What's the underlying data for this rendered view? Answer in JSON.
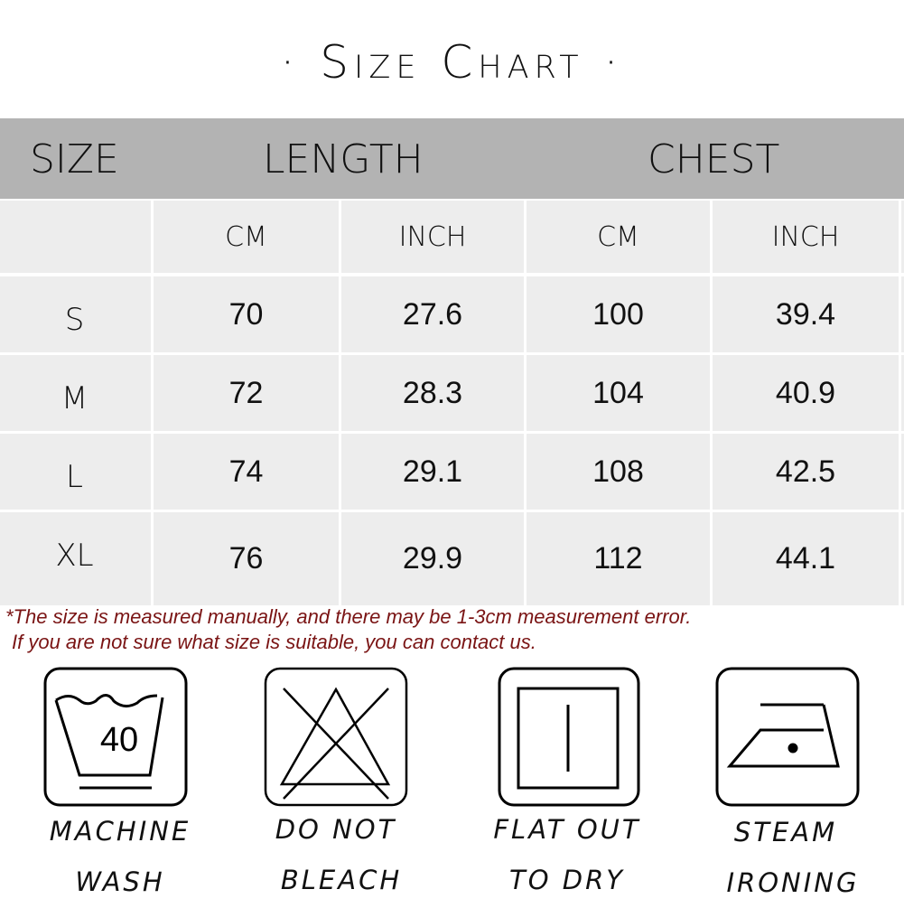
{
  "title": "· Size Chart ·",
  "header": {
    "size": "SIZE",
    "length": "LENGTH",
    "chest": "CHEST"
  },
  "units": [
    "CM",
    "INCH",
    "CM",
    "INCH"
  ],
  "rows": [
    {
      "size": "S",
      "length_cm": "70",
      "length_inch": "27.6",
      "chest_cm": "100",
      "chest_inch": "39.4"
    },
    {
      "size": "M",
      "length_cm": "72",
      "length_inch": "28.3",
      "chest_cm": "104",
      "chest_inch": "40.9"
    },
    {
      "size": "L",
      "length_cm": "74",
      "length_inch": "29.1",
      "chest_cm": "108",
      "chest_inch": "42.5"
    },
    {
      "size": "XL",
      "length_cm": "76",
      "length_inch": "29.9",
      "chest_cm": "112",
      "chest_inch": "44.1"
    }
  ],
  "notes": [
    "*The size is measured manually, and there may be 1-3cm measurement error.",
    "If you are not sure what size is suitable, you can contact us."
  ],
  "care": [
    {
      "icon": "machine-wash-40-icon",
      "temp": "40",
      "line1": "MACHINE",
      "line2": "WASH"
    },
    {
      "icon": "do-not-bleach-icon",
      "line1": "DO NOT",
      "line2": "BLEACH"
    },
    {
      "icon": "flat-dry-icon",
      "line1": "FLAT OUT",
      "line2": "TO DRY"
    },
    {
      "icon": "steam-iron-icon",
      "line1": "STEAM",
      "line2": "IRONING"
    }
  ],
  "colors": {
    "header_bg": "#b3b3b3",
    "cell_bg": "#ededed",
    "note": "#7a1414"
  }
}
